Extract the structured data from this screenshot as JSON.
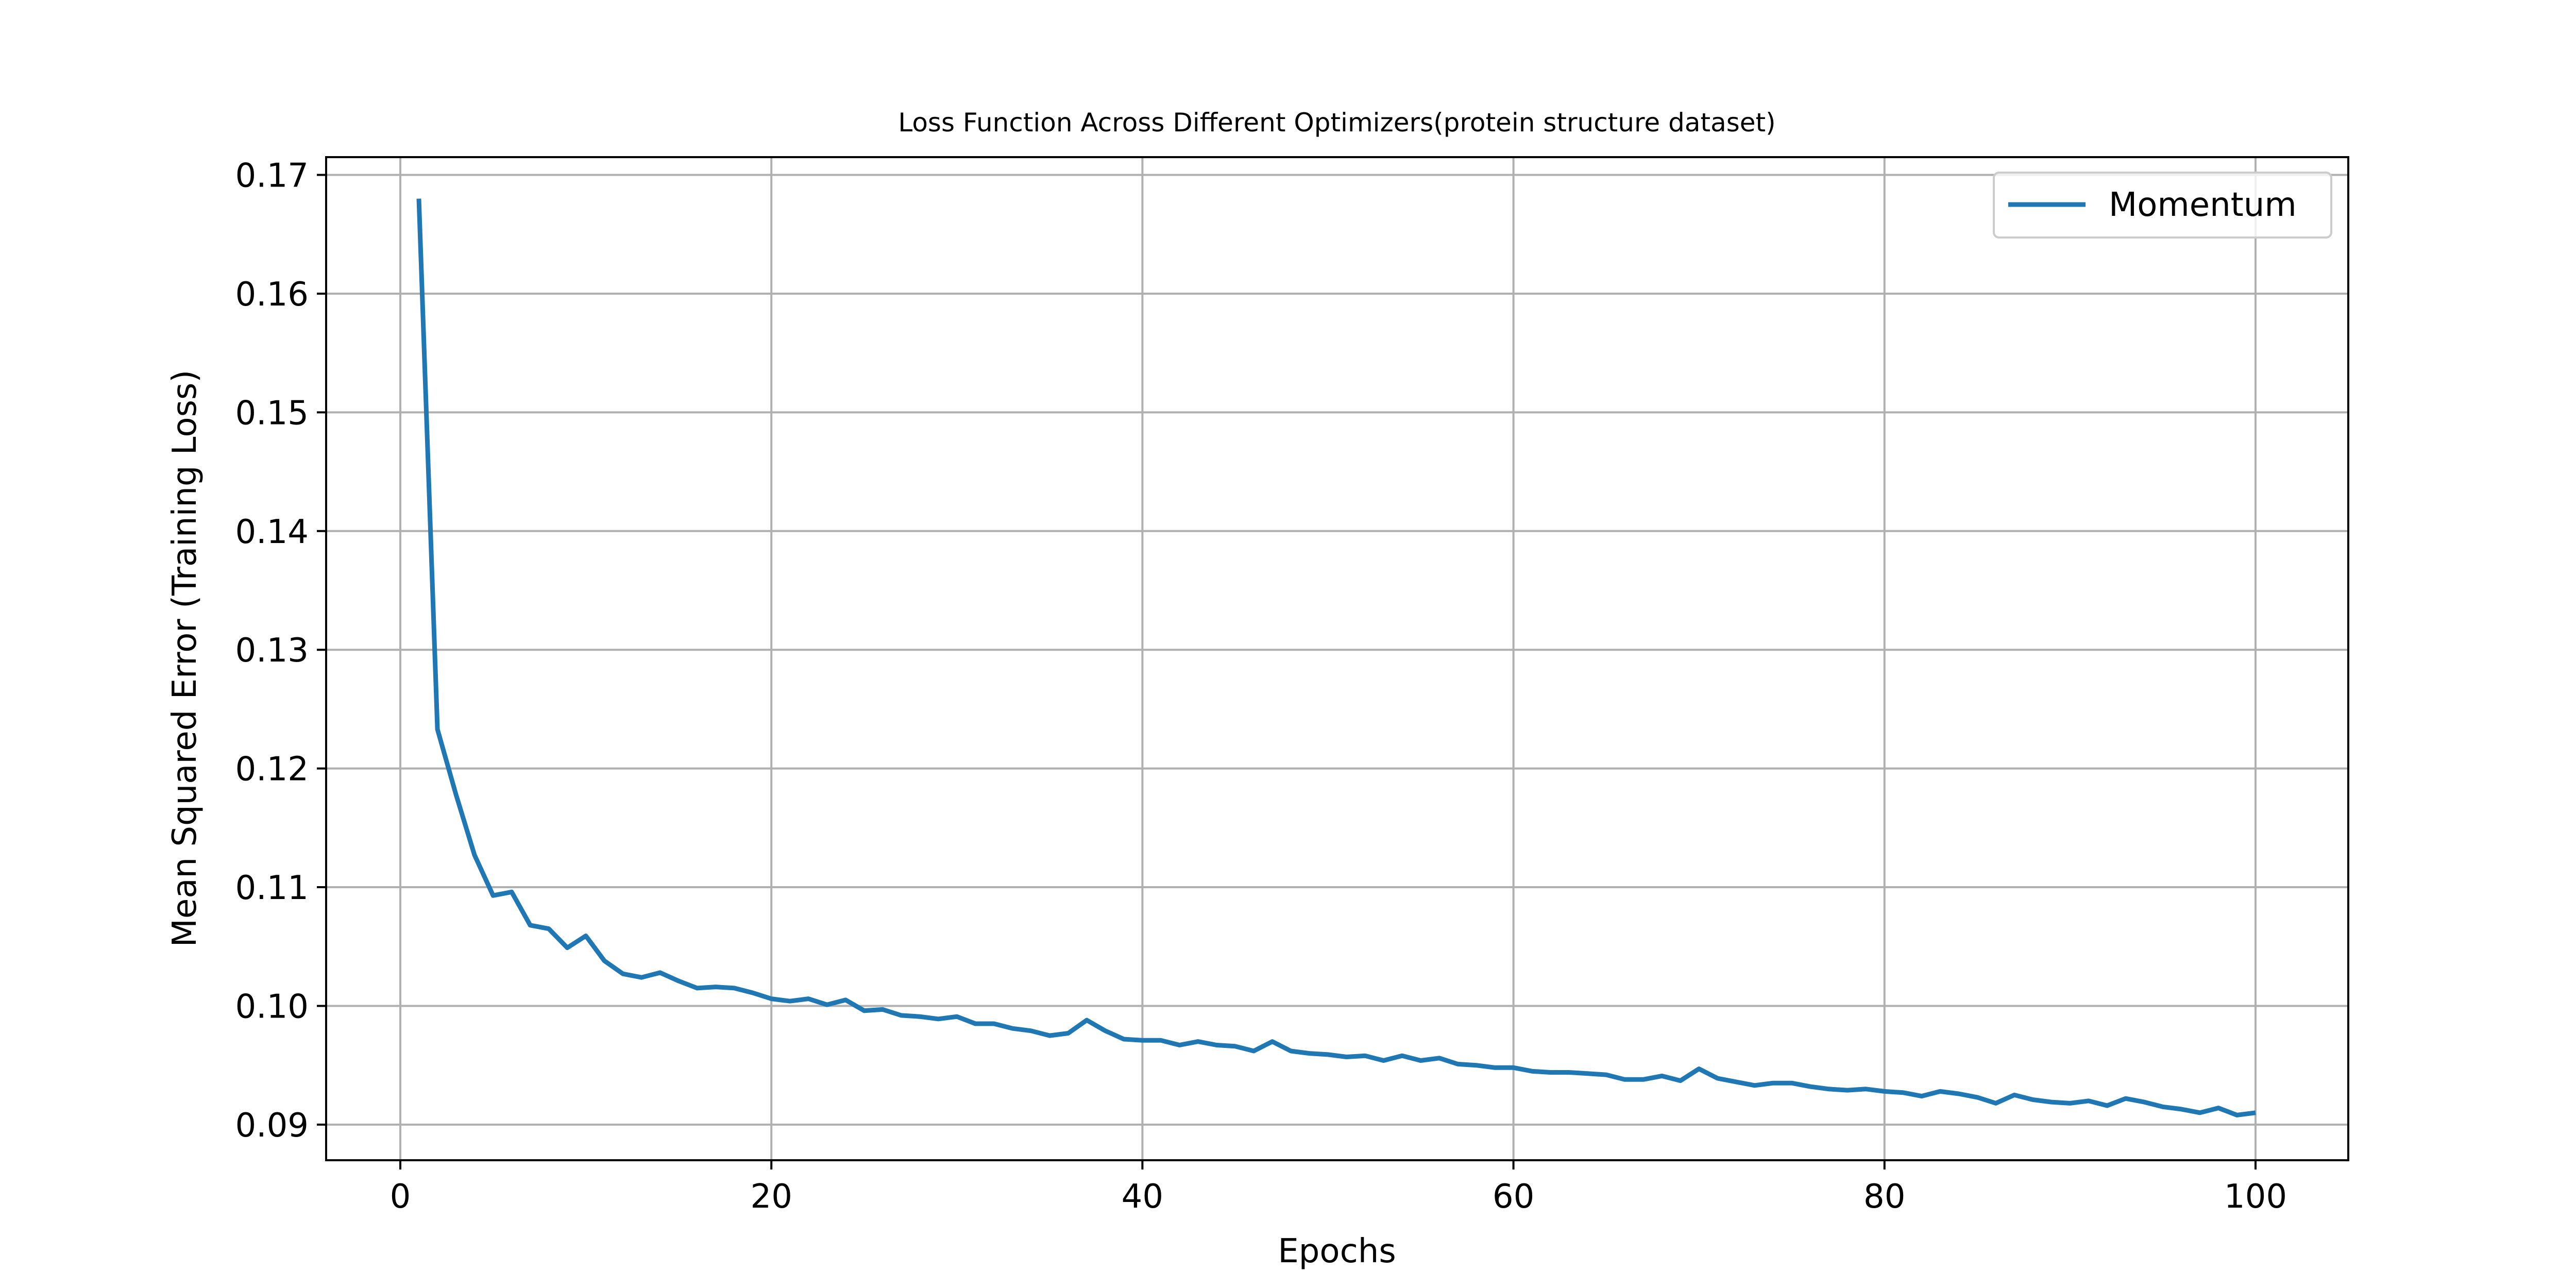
{
  "chart_data": {
    "type": "line",
    "title": "Loss Function Across Different Optimizers(protein structure dataset)",
    "xlabel": "Epochs",
    "ylabel": "Mean Squared Error (Training Loss)",
    "xlim": [
      -4,
      105
    ],
    "ylim": [
      0.087,
      0.1715
    ],
    "xticks": [
      0,
      20,
      40,
      60,
      80,
      100
    ],
    "yticks": [
      0.09,
      0.1,
      0.11,
      0.12,
      0.13,
      0.14,
      0.15,
      0.16,
      0.17
    ],
    "ytick_labels": [
      "0.09",
      "0.10",
      "0.11",
      "0.12",
      "0.13",
      "0.14",
      "0.15",
      "0.16",
      "0.17"
    ],
    "grid": true,
    "legend_position": "top-right",
    "series": [
      {
        "name": "Momentum",
        "color": "#1f77b4",
        "x": [
          1,
          2,
          3,
          4,
          5,
          6,
          7,
          8,
          9,
          10,
          11,
          12,
          13,
          14,
          15,
          16,
          17,
          18,
          19,
          20,
          21,
          22,
          23,
          24,
          25,
          26,
          27,
          28,
          29,
          30,
          31,
          32,
          33,
          34,
          35,
          36,
          37,
          38,
          39,
          40,
          41,
          42,
          43,
          44,
          45,
          46,
          47,
          48,
          49,
          50,
          51,
          52,
          53,
          54,
          55,
          56,
          57,
          58,
          59,
          60,
          61,
          62,
          63,
          64,
          65,
          66,
          67,
          68,
          69,
          70,
          71,
          72,
          73,
          74,
          75,
          76,
          77,
          78,
          79,
          80,
          81,
          82,
          83,
          84,
          85,
          86,
          87,
          88,
          89,
          90,
          91,
          92,
          93,
          94,
          95,
          96,
          97,
          98,
          99,
          100
        ],
        "values": [
          0.168,
          0.1233,
          0.1178,
          0.1127,
          0.1093,
          0.1096,
          0.1068,
          0.1065,
          0.1049,
          0.1059,
          0.1038,
          0.1027,
          0.1024,
          0.1028,
          0.1021,
          0.1015,
          0.1016,
          0.1015,
          0.1011,
          0.1006,
          0.1004,
          0.1006,
          0.1001,
          0.1005,
          0.0996,
          0.0997,
          0.0992,
          0.0991,
          0.0989,
          0.0991,
          0.0985,
          0.0985,
          0.0981,
          0.0979,
          0.0975,
          0.0977,
          0.0988,
          0.0979,
          0.0972,
          0.0971,
          0.0971,
          0.0967,
          0.097,
          0.0967,
          0.0966,
          0.0962,
          0.097,
          0.0962,
          0.096,
          0.0959,
          0.0957,
          0.0958,
          0.0954,
          0.0958,
          0.0954,
          0.0956,
          0.0951,
          0.095,
          0.0948,
          0.0948,
          0.0945,
          0.0944,
          0.0944,
          0.0943,
          0.0942,
          0.0938,
          0.0938,
          0.0941,
          0.0937,
          0.0947,
          0.0939,
          0.0936,
          0.0933,
          0.0935,
          0.0935,
          0.0932,
          0.093,
          0.0929,
          0.093,
          0.0928,
          0.0927,
          0.0924,
          0.0928,
          0.0926,
          0.0923,
          0.0918,
          0.0925,
          0.0921,
          0.0919,
          0.0918,
          0.092,
          0.0916,
          0.0922,
          0.0919,
          0.0915,
          0.0913,
          0.091,
          0.0914,
          0.0908,
          0.091
        ]
      }
    ]
  }
}
